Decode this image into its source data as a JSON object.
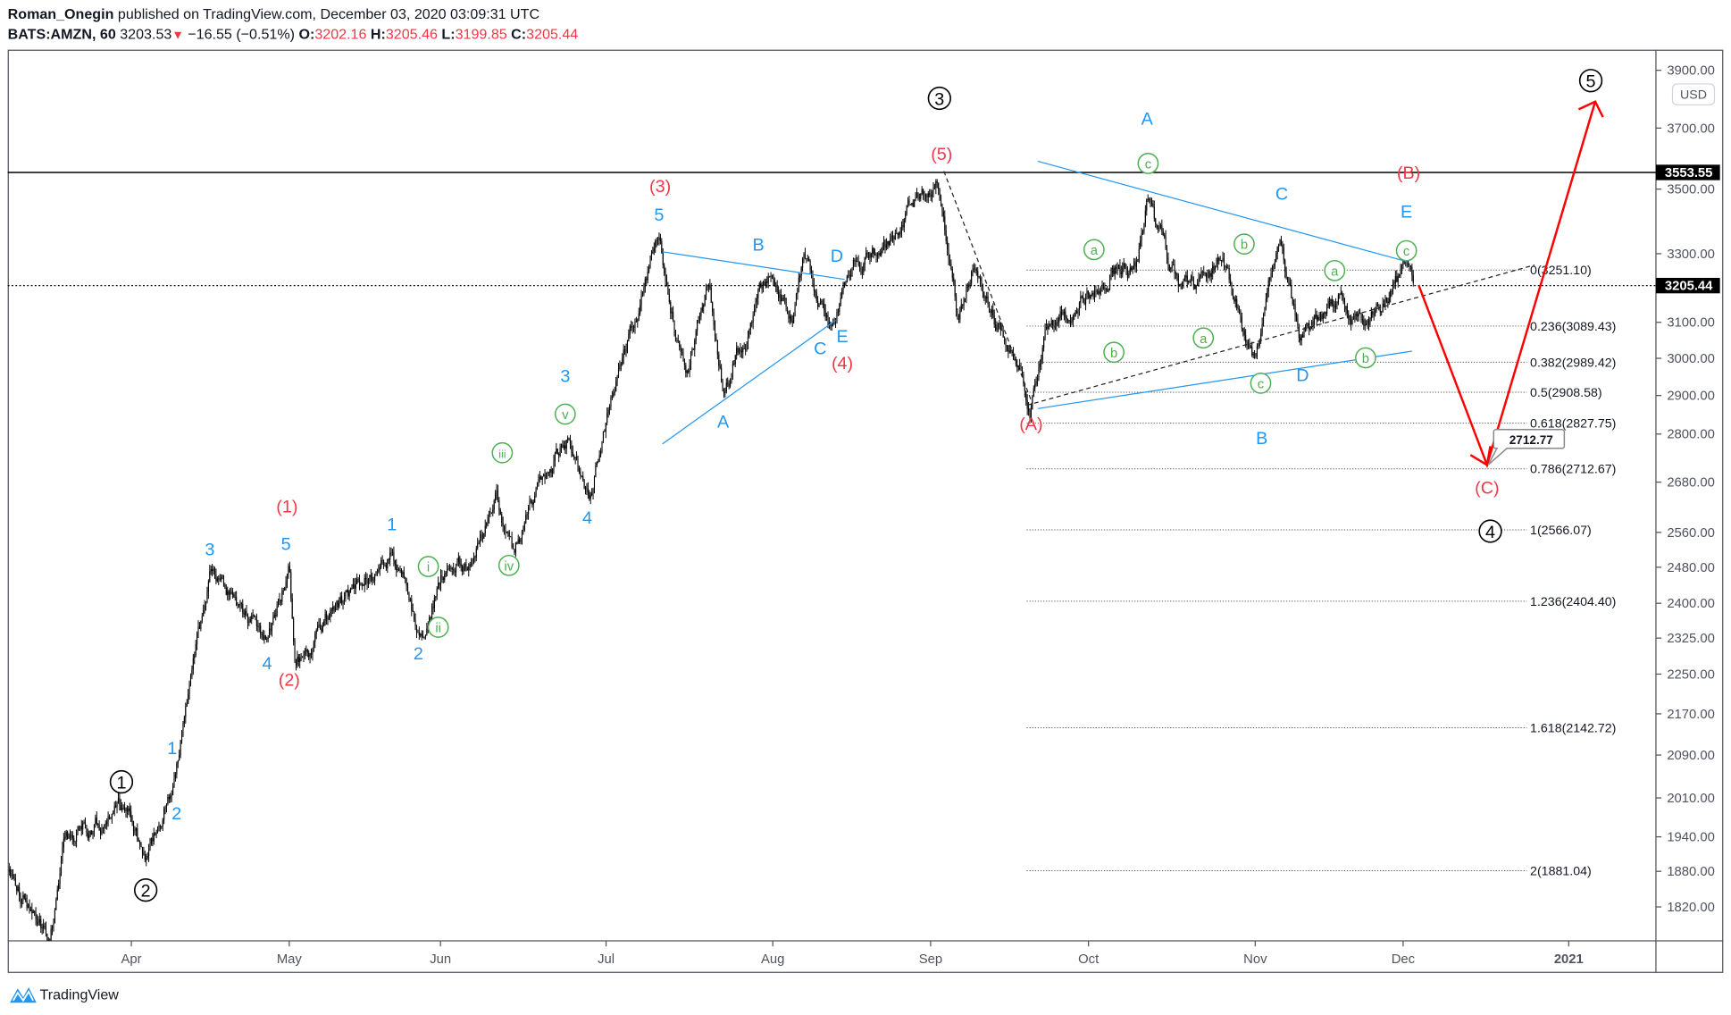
{
  "header": {
    "author": "Roman_Onegin",
    "published": "published on TradingView.com, December 03, 2020 03:09:31 UTC",
    "symbol": "BATS:AMZN, 60",
    "last": "3203.53",
    "change": "−16.55 (−0.51%)",
    "o_label": "O:",
    "o": "3202.16",
    "h_label": "H:",
    "h": "3205.46",
    "l_label": "L:",
    "l": "3199.85",
    "c_label": "C:",
    "c": "3205.44"
  },
  "footer": {
    "brand": "TradingView"
  },
  "colors": {
    "red": "#ff0000",
    "label_red": "#f23645",
    "blue": "#2196f3",
    "green": "#4caf50",
    "candle": "#000000"
  },
  "chart_data": {
    "type": "candlestick",
    "scale": "log",
    "currency": "USD",
    "ylim": [
      1780,
      3950
    ],
    "y_ticks": [
      "3900.00",
      "3700.00",
      "3500.00",
      "3300.00",
      "3100.00",
      "3000.00",
      "2900.00",
      "2800.00",
      "2680.00",
      "2560.00",
      "2480.00",
      "2400.00",
      "2325.00",
      "2250.00",
      "2170.00",
      "2090.00",
      "2010.00",
      "1940.00",
      "1880.00",
      "1820.00"
    ],
    "x_ticks": [
      "Apr",
      "May",
      "Jun",
      "Jul",
      "Aug",
      "Sep",
      "Oct",
      "Nov",
      "Dec",
      "2021"
    ],
    "price_tags": [
      {
        "label": "3553.55",
        "price": 3553.55,
        "line": "solid"
      },
      {
        "label": "3205.44",
        "price": 3205.44,
        "line": "dotted"
      }
    ],
    "approx_close_path": [
      [
        "2020-03-07",
        1878
      ],
      [
        "2020-03-16",
        1768
      ],
      [
        "2020-03-19",
        1936
      ],
      [
        "2020-03-31",
        1985
      ],
      [
        "2020-04-04",
        1897
      ],
      [
        "2020-04-09",
        2036
      ],
      [
        "2020-04-13",
        2274
      ],
      [
        "2020-04-16",
        2452
      ],
      [
        "2020-04-27",
        2320
      ],
      [
        "2020-05-01",
        2477
      ],
      [
        "2020-05-02",
        2262
      ],
      [
        "2020-05-10",
        2379
      ],
      [
        "2020-05-22",
        2522
      ],
      [
        "2020-05-28",
        2332
      ],
      [
        "2020-06-01",
        2465
      ],
      [
        "2020-06-07",
        2477
      ],
      [
        "2020-06-11",
        2671
      ],
      [
        "2020-06-14",
        2515
      ],
      [
        "2020-06-19",
        2671
      ],
      [
        "2020-06-24",
        2781
      ],
      [
        "2020-06-28",
        2657
      ],
      [
        "2020-07-03",
        2953
      ],
      [
        "2020-07-11",
        3339
      ],
      [
        "2020-07-16",
        2939
      ],
      [
        "2020-07-20",
        3233
      ],
      [
        "2020-07-23",
        2909
      ],
      [
        "2020-07-31",
        3240
      ],
      [
        "2020-08-05",
        3122
      ],
      [
        "2020-08-07",
        3250
      ],
      [
        "2020-08-12",
        3090
      ],
      [
        "2020-08-17",
        3266
      ],
      [
        "2020-08-24",
        3316
      ],
      [
        "2020-08-27",
        3435
      ],
      [
        "2020-09-02",
        3551
      ],
      [
        "2020-09-06",
        3122
      ],
      [
        "2020-09-09",
        3283
      ],
      [
        "2020-09-13",
        3106
      ],
      [
        "2020-09-17",
        3014
      ],
      [
        "2020-09-20",
        2880
      ],
      [
        "2020-09-23",
        3060
      ],
      [
        "2020-10-02",
        3208
      ],
      [
        "2020-10-10",
        3266
      ],
      [
        "2020-10-12",
        3487
      ],
      [
        "2020-10-14",
        3366
      ],
      [
        "2020-10-18",
        3185
      ],
      [
        "2020-10-26",
        3266
      ],
      [
        "2020-11-01",
        2969
      ],
      [
        "2020-11-06",
        3366
      ],
      [
        "2020-11-10",
        3044
      ],
      [
        "2020-11-18",
        3169
      ],
      [
        "2020-11-24",
        3090
      ],
      [
        "2020-12-01",
        3240
      ],
      [
        "2020-12-03",
        3205
      ]
    ],
    "fibonacci": [
      {
        "label": "0(3251.10)",
        "price": 3251.1
      },
      {
        "label": "0.236(3089.43)",
        "price": 3089.43
      },
      {
        "label": "0.382(2989.42)",
        "price": 2989.42
      },
      {
        "label": "0.5(2908.58)",
        "price": 2908.58
      },
      {
        "label": "0.618(2827.75)",
        "price": 2827.75
      },
      {
        "label": "0.786(2712.67)",
        "price": 2712.67
      },
      {
        "label": "1(2566.07)",
        "price": 2566.07
      },
      {
        "label": "1.236(2404.40)",
        "price": 2404.4
      },
      {
        "label": "1.618(2142.72)",
        "price": 2142.72
      },
      {
        "label": "2(1881.04)",
        "price": 1881.04
      }
    ],
    "callout": "2712.77",
    "wave_labels": {
      "black": [
        "1",
        "2",
        "3",
        "4",
        "5"
      ],
      "red": [
        "(1)",
        "(2)",
        "(3)",
        "(4)",
        "(5)",
        "(A)",
        "(B)",
        "(C)"
      ],
      "blue": [
        "1",
        "2",
        "3",
        "4",
        "5",
        "1",
        "2",
        "3",
        "4",
        "5",
        "A",
        "B",
        "C",
        "D",
        "E",
        "A",
        "B",
        "C",
        "D",
        "E"
      ],
      "green": [
        "i",
        "ii",
        "iii",
        "iv",
        "v",
        "a",
        "b",
        "c",
        "a",
        "b",
        "c",
        "a",
        "b",
        "c"
      ]
    }
  }
}
